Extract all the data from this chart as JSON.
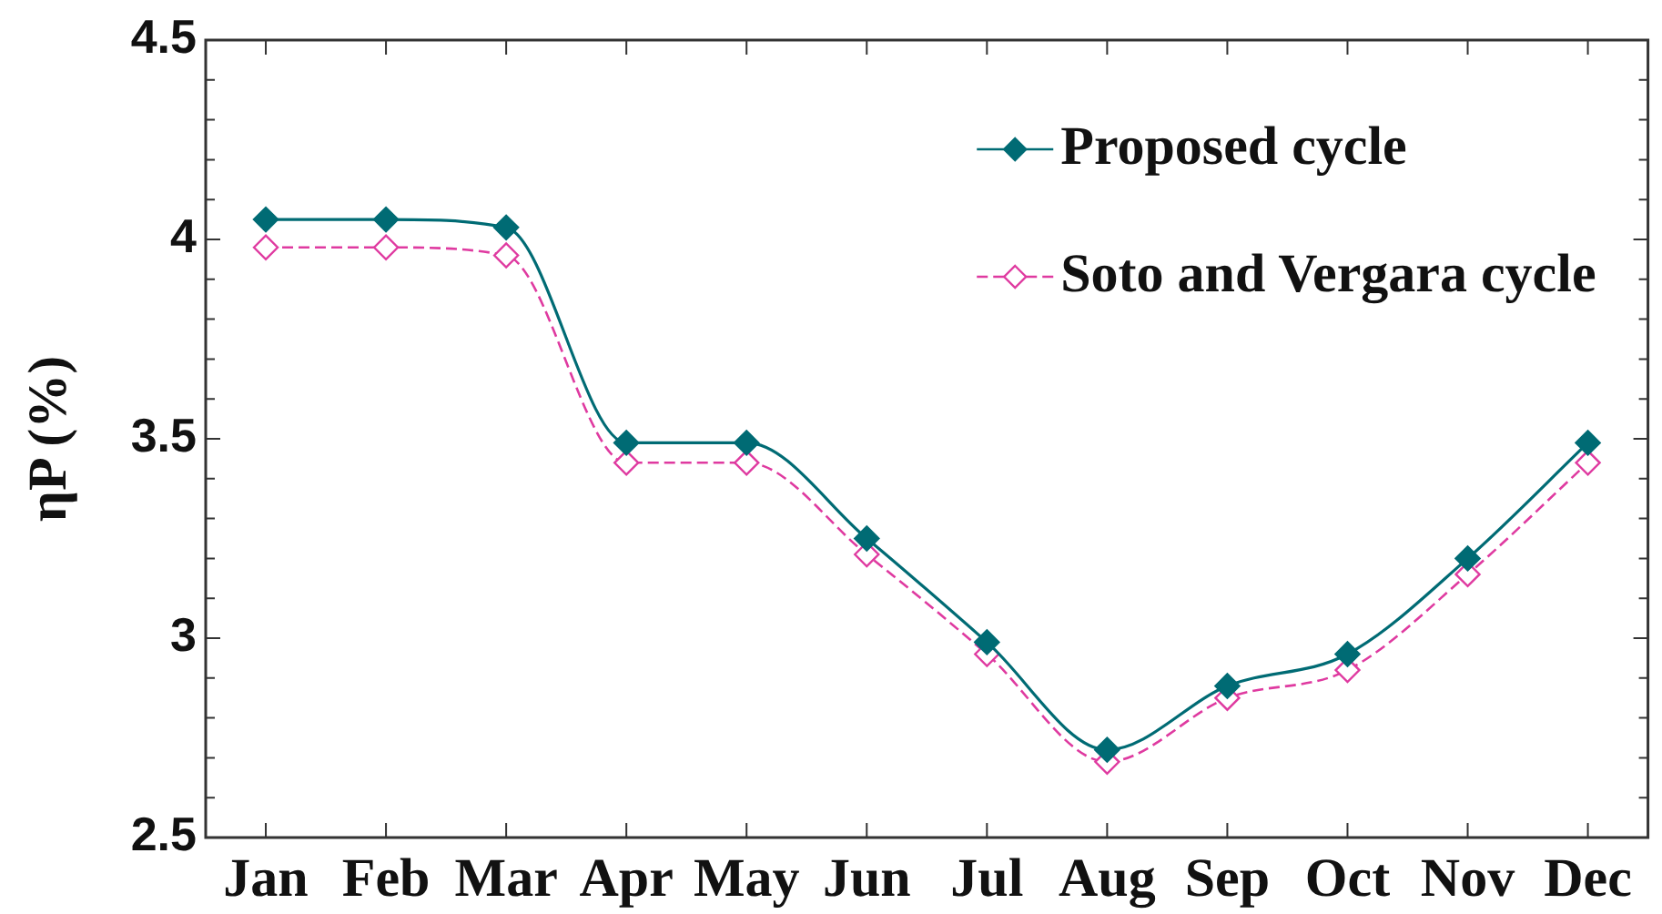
{
  "chart_data": {
    "type": "line",
    "ylabel": "ηP (%)",
    "categories": [
      "Jan",
      "Feb",
      "Mar",
      "Apr",
      "May",
      "Jun",
      "Jul",
      "Aug",
      "Sep",
      "Oct",
      "Nov",
      "Dec"
    ],
    "series": [
      {
        "name": "Proposed cycle",
        "color": "#006b74",
        "line_style": "solid",
        "values": [
          4.05,
          4.05,
          4.03,
          3.49,
          3.49,
          3.25,
          2.99,
          2.72,
          2.88,
          2.96,
          3.2,
          3.49
        ]
      },
      {
        "name": "Soto and Vergara cycle",
        "color": "#df3aa0",
        "line_style": "dashed",
        "values": [
          3.98,
          3.98,
          3.96,
          3.44,
          3.44,
          3.21,
          2.96,
          2.69,
          2.85,
          2.92,
          3.16,
          3.44
        ]
      }
    ],
    "ylim": [
      2.5,
      4.5
    ],
    "yticks": [
      2.5,
      {
        "value": 2.6,
        "label": null
      },
      {
        "value": 2.7,
        "label": null
      },
      {
        "value": 2.8,
        "label": null
      },
      {
        "value": 2.9,
        "label": null
      },
      3,
      {
        "value": 3.1,
        "label": null
      },
      {
        "value": 3.2,
        "label": null
      },
      {
        "value": 3.3,
        "label": null
      },
      {
        "value": 3.4,
        "label": null
      },
      3.5,
      {
        "value": 3.6,
        "label": null
      },
      {
        "value": 3.7,
        "label": null
      },
      {
        "value": 3.8,
        "label": null
      },
      {
        "value": 3.9,
        "label": null
      },
      4,
      {
        "value": 4.1,
        "label": null
      },
      {
        "value": 4.2,
        "label": null
      },
      {
        "value": 4.3,
        "label": null
      },
      {
        "value": 4.4,
        "label": null
      },
      4.5
    ],
    "legend": "top right",
    "marker": "diamond"
  }
}
